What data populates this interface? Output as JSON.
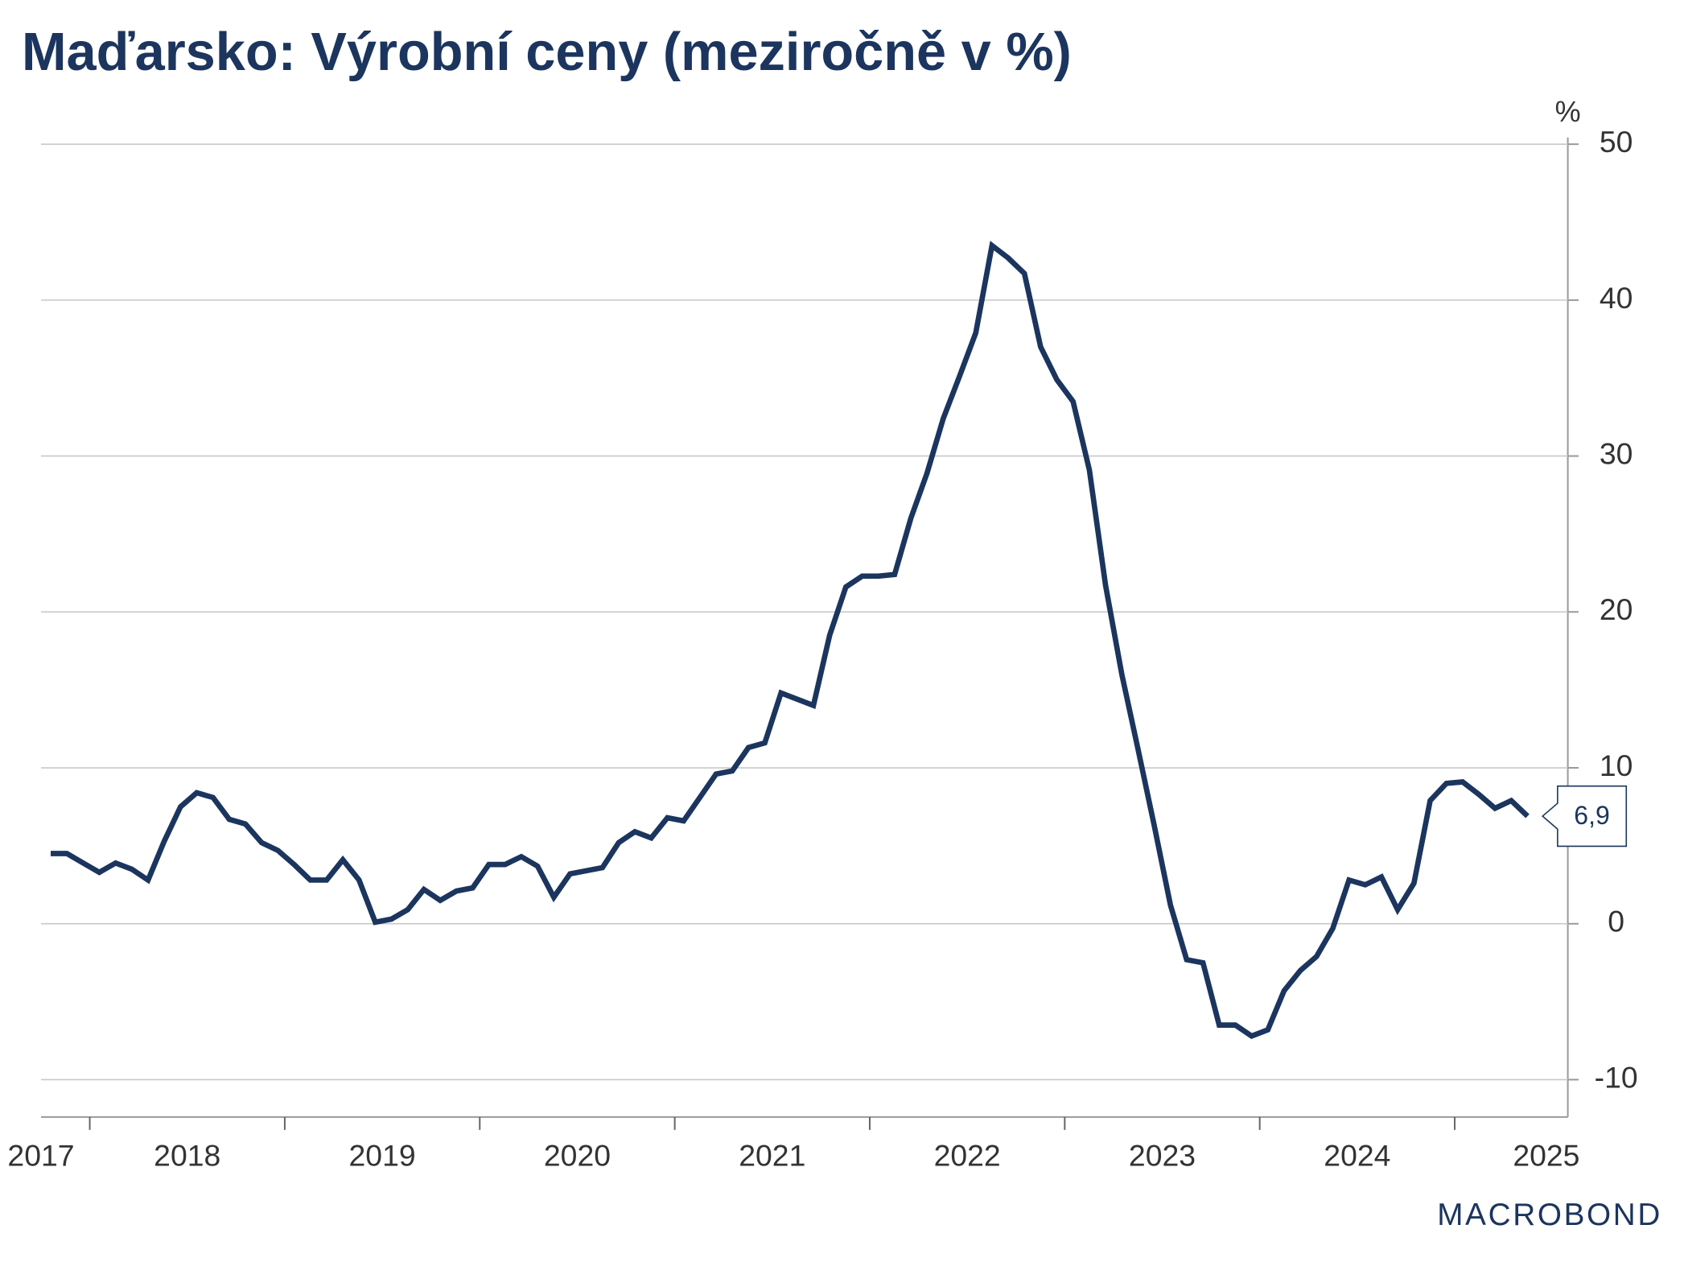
{
  "chart_data": {
    "type": "line",
    "title": "Maďarsko: Výrobní ceny (meziročně v %)",
    "y_unit": "%",
    "ylim": [
      -11.5,
      50.5
    ],
    "yticks": [
      -10,
      0,
      10,
      20,
      30,
      40,
      50
    ],
    "grid": true,
    "xlim": [
      2017.75,
      2025.58
    ],
    "xticks": [
      2018,
      2019,
      2020,
      2021,
      2022,
      2023,
      2024,
      2025
    ],
    "xlabels": [
      {
        "value": 2017.5,
        "label": "2017"
      },
      {
        "value": 2018.5,
        "label": "2018"
      },
      {
        "value": 2019.5,
        "label": "2019"
      },
      {
        "value": 2020.5,
        "label": "2020"
      },
      {
        "value": 2021.5,
        "label": "2021"
      },
      {
        "value": 2022.5,
        "label": "2022"
      },
      {
        "value": 2023.5,
        "label": "2023"
      },
      {
        "value": 2024.5,
        "label": "2024"
      },
      {
        "value": 2025.5,
        "label": "2025"
      }
    ],
    "series": [
      {
        "color": "#1b355e",
        "values": [
          4.5,
          4.5,
          3.9,
          3.3,
          3.9,
          3.5,
          2.8,
          5.3,
          7.5,
          8.4,
          8.1,
          6.7,
          6.4,
          5.2,
          4.7,
          3.8,
          2.8,
          2.8,
          4.1,
          2.8,
          0.1,
          0.3,
          0.9,
          2.2,
          1.5,
          2.1,
          2.3,
          3.8,
          3.8,
          4.3,
          3.7,
          1.7,
          3.2,
          3.4,
          3.6,
          5.2,
          5.9,
          5.5,
          6.8,
          6.6,
          8.1,
          9.6,
          9.8,
          11.3,
          11.6,
          14.8,
          14.4,
          14.0,
          18.5,
          21.6,
          22.3,
          22.3,
          22.4,
          26.0,
          28.9,
          32.4,
          35.1,
          37.9,
          43.5,
          42.7,
          41.7,
          37.0,
          34.9,
          33.5,
          29.1,
          21.7,
          16.0,
          11.2,
          6.3,
          1.2,
          -2.3,
          -2.5,
          -6.5,
          -6.5,
          -7.2,
          -6.8,
          -4.3,
          -3.0,
          -2.1,
          -0.3,
          2.8,
          2.5,
          3.0,
          0.9,
          2.6,
          7.9,
          9.0,
          9.1,
          8.3,
          7.4,
          7.9,
          6.9
        ],
        "last_label": "6,9"
      }
    ],
    "source": "MACROBOND"
  }
}
